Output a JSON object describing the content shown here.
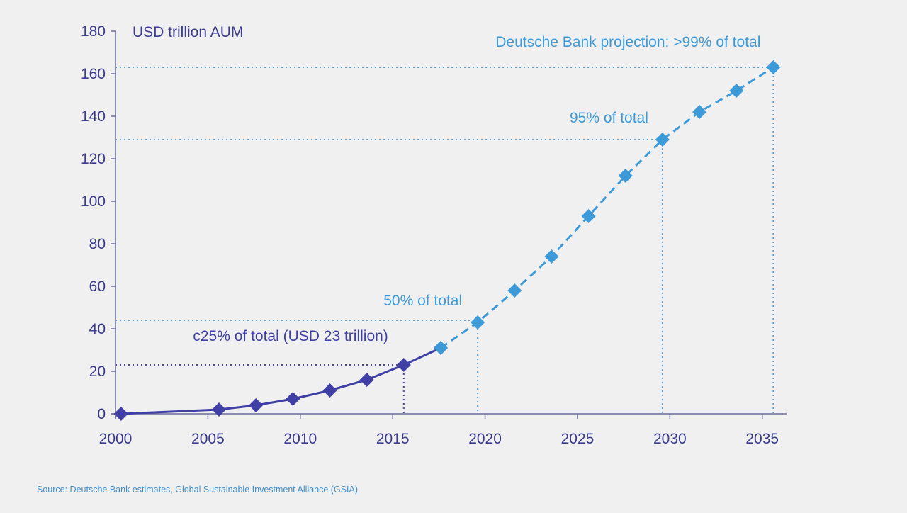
{
  "chart_data": {
    "type": "line",
    "ylabel": "USD trillion AUM",
    "xlim": [
      2000,
      2036
    ],
    "ylim": [
      0,
      180
    ],
    "xticks": [
      2000,
      2005,
      2010,
      2015,
      2020,
      2025,
      2030,
      2035
    ],
    "yticks": [
      0,
      20,
      40,
      60,
      80,
      100,
      120,
      140,
      160,
      180
    ],
    "grid": false,
    "series": [
      {
        "style": "solid",
        "color": "#3f3fa5",
        "x": [
          2000.3,
          2005.6,
          2007.6,
          2009.6,
          2011.6,
          2013.6,
          2015.6,
          2017.6
        ],
        "y": [
          0,
          2,
          4,
          7,
          11,
          16,
          23,
          31
        ]
      },
      {
        "style": "dashed",
        "color": "#3d9ad9",
        "x": [
          2017.6,
          2019.6,
          2021.6,
          2023.6,
          2025.6,
          2027.6,
          2029.6,
          2031.6,
          2033.6,
          2035.6
        ],
        "y": [
          31,
          43,
          58,
          74,
          93,
          112,
          129,
          142,
          152,
          163
        ]
      }
    ],
    "annotations": [
      {
        "text": "c25% of total (USD 23 trillion)",
        "x": 2015.6,
        "y": 23,
        "color": "#3f3fa5"
      },
      {
        "text": "50% of total",
        "x": 2019.6,
        "y": 44,
        "color": "#3d9ad9"
      },
      {
        "text": "95% of total",
        "x": 2029.6,
        "y": 129,
        "color": "#3d9ad9"
      },
      {
        "text": "Deutsche Bank projection: >99% of total",
        "x": 2035.6,
        "y": 163,
        "color": "#3d9ad9"
      }
    ],
    "source": "Source: Deutsche Bank estimates, Global Sustainable Investment Alliance (GSIA)"
  }
}
